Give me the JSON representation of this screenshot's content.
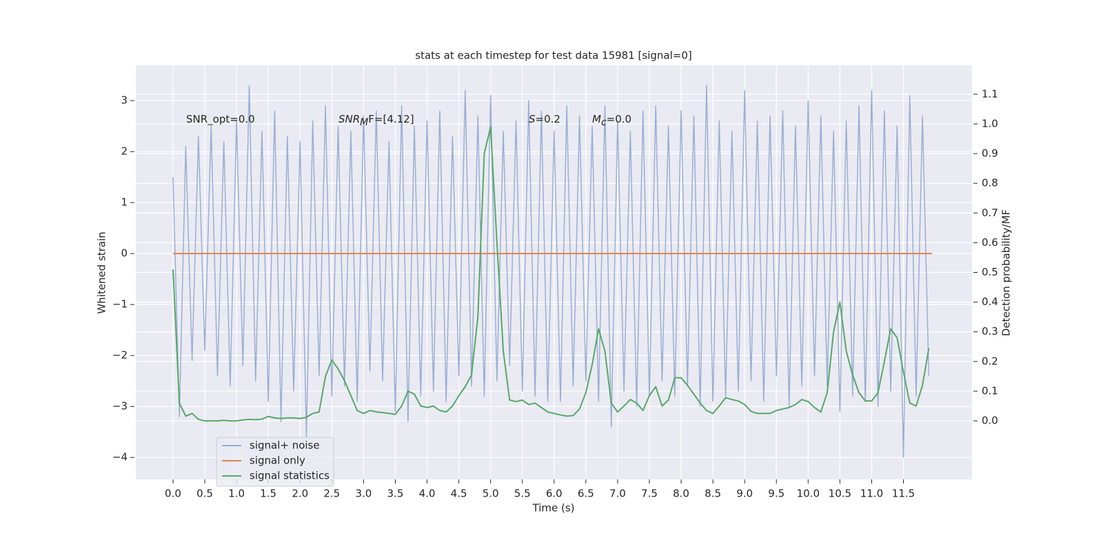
{
  "chart_data": {
    "type": "line",
    "title": "stats at each timestep for test data 15981 [signal=0]",
    "xlabel": "Time (s)",
    "ylabel": "Whitened strain",
    "y2label": "Detection probability/MF",
    "annotations": [
      {
        "text": "SNR_opt=0.0"
      },
      {
        "text": "SNR",
        "sub": "M",
        "tail": "F=[4.12]"
      },
      {
        "text": "S",
        "tail": "=0.2"
      },
      {
        "text": "M",
        "sub": "c",
        "tail": "=0.0"
      }
    ],
    "grid": true,
    "legend": "lower left",
    "xlim": [
      -0.586,
      12.58
    ],
    "ylim": [
      -4.43,
      3.69
    ],
    "y2lim": [
      -0.197,
      1.197
    ],
    "xticks": [
      {
        "value": 0,
        "label": "0.0"
      },
      {
        "value": 0.5,
        "label": "0.5"
      },
      {
        "value": 1,
        "label": "1.0"
      },
      {
        "value": 1.5,
        "label": "1.5"
      },
      {
        "value": 2,
        "label": "2.0"
      },
      {
        "value": 2.5,
        "label": "2.5"
      },
      {
        "value": 3,
        "label": "3.0"
      },
      {
        "value": 3.5,
        "label": "3.5"
      },
      {
        "value": 4,
        "label": "4.0"
      },
      {
        "value": 4.5,
        "label": "4.5"
      },
      {
        "value": 5,
        "label": "5.0"
      },
      {
        "value": 5.5,
        "label": "5.5"
      },
      {
        "value": 6,
        "label": "6.0"
      },
      {
        "value": 6.5,
        "label": "6.5"
      },
      {
        "value": 7,
        "label": "7.0"
      },
      {
        "value": 7.5,
        "label": "7.5"
      },
      {
        "value": 8,
        "label": "8.0"
      },
      {
        "value": 8.5,
        "label": "8.5"
      },
      {
        "value": 9,
        "label": "9.0"
      },
      {
        "value": 9.5,
        "label": "9.5"
      },
      {
        "value": 10,
        "label": "10.0"
      },
      {
        "value": 10.5,
        "label": "10.5"
      },
      {
        "value": 11,
        "label": "11.0"
      },
      {
        "value": 11.5,
        "label": "11.5"
      }
    ],
    "yticks": [
      {
        "value": -4,
        "label": "−4"
      },
      {
        "value": -3,
        "label": "−3"
      },
      {
        "value": -2,
        "label": "−2"
      },
      {
        "value": -1,
        "label": "−1"
      },
      0,
      1,
      2,
      3
    ],
    "y2ticks": [
      {
        "value": 0,
        "label": "0.0"
      },
      {
        "value": 0.1,
        "label": "0.1"
      },
      {
        "value": 0.2,
        "label": "0.2"
      },
      {
        "value": 0.3,
        "label": "0.3"
      },
      {
        "value": 0.4,
        "label": "0.4"
      },
      {
        "value": 0.5,
        "label": "0.5"
      },
      {
        "value": 0.6,
        "label": "0.6"
      },
      {
        "value": 0.7,
        "label": "0.7"
      },
      {
        "value": 0.8,
        "label": "0.8"
      },
      {
        "value": 0.9,
        "label": "0.9"
      },
      {
        "value": 1,
        "label": "1.0"
      },
      {
        "value": 1.1,
        "label": "1.1"
      }
    ],
    "x": [
      0.0,
      0.1,
      0.2,
      0.3,
      0.4,
      0.5,
      0.6,
      0.7,
      0.8,
      0.9,
      1.0,
      1.1,
      1.2,
      1.3,
      1.4,
      1.5,
      1.6,
      1.7,
      1.8,
      1.9,
      2.0,
      2.1,
      2.2,
      2.3,
      2.4,
      2.5,
      2.6,
      2.7,
      2.8,
      2.9,
      3.0,
      3.1,
      3.2,
      3.3,
      3.4,
      3.5,
      3.6,
      3.7,
      3.8,
      3.9,
      4.0,
      4.1,
      4.2,
      4.3,
      4.4,
      4.5,
      4.6,
      4.7,
      4.8,
      4.9,
      5.0,
      5.1,
      5.2,
      5.3,
      5.4,
      5.5,
      5.6,
      5.7,
      5.8,
      5.9,
      6.0,
      6.1,
      6.2,
      6.3,
      6.4,
      6.5,
      6.6,
      6.7,
      6.8,
      6.9,
      7.0,
      7.1,
      7.2,
      7.3,
      7.4,
      7.5,
      7.6,
      7.7,
      7.8,
      7.9,
      8.0,
      8.1,
      8.2,
      8.3,
      8.4,
      8.5,
      8.6,
      8.7,
      8.8,
      8.9,
      9.0,
      9.1,
      9.2,
      9.3,
      9.4,
      9.5,
      9.6,
      9.7,
      9.8,
      9.9,
      10.0,
      10.1,
      10.2,
      10.3,
      10.4,
      10.5,
      10.6,
      10.7,
      10.8,
      10.9,
      11.0,
      11.1,
      11.2,
      11.3,
      11.4,
      11.5,
      11.6,
      11.7,
      11.8,
      11.9
    ],
    "series": [
      {
        "name": "signal+ noise",
        "color": "#9aaed4",
        "values": [
          1.5,
          -3.2,
          2.1,
          -2.1,
          2.3,
          -1.9,
          2.5,
          -2.4,
          2.2,
          -2.6,
          2.6,
          -2.2,
          3.3,
          -2.5,
          2.4,
          -2.9,
          2.8,
          -3.3,
          2.3,
          -2.7,
          2.2,
          -3.6,
          2.6,
          -2.4,
          2.9,
          -2.8,
          2.5,
          -2.6,
          2.4,
          -2.9,
          2.7,
          -2.3,
          2.8,
          -2.5,
          2.2,
          -3.1,
          2.9,
          -3.3,
          2.5,
          -2.8,
          2.6,
          -2.7,
          2.8,
          -2.9,
          2.3,
          -2.4,
          3.2,
          -2.6,
          2.7,
          -2.8,
          3.1,
          -2.5,
          2.4,
          -2.2,
          2.6,
          -2.7,
          3.0,
          -2.8,
          2.8,
          -2.9,
          2.4,
          -2.9,
          2.9,
          -2.6,
          2.7,
          -2.5,
          2.5,
          -2.9,
          2.9,
          -3.4,
          2.6,
          -2.7,
          2.4,
          -3.0,
          2.8,
          -2.8,
          2.9,
          -2.5,
          2.5,
          -2.8,
          2.8,
          -2.6,
          2.7,
          -3.0,
          3.3,
          -2.9,
          2.6,
          -2.8,
          2.4,
          -2.7,
          3.2,
          -2.5,
          2.6,
          -2.9,
          2.7,
          -2.4,
          2.8,
          -3.0,
          2.5,
          -2.6,
          3.0,
          -2.4,
          2.7,
          -2.6,
          2.4,
          -3.1,
          2.6,
          -2.8,
          2.9,
          -2.9,
          3.2,
          -3.0,
          2.8,
          -2.7,
          2.5,
          -4.0,
          3.1,
          -2.8,
          2.7,
          -2.4
        ]
      },
      {
        "name": "signal only",
        "color": "#dd8452",
        "x": [
          0.0,
          11.95
        ],
        "values": [
          0,
          0
        ]
      },
      {
        "name": "signal statistics",
        "color": "#55a868",
        "axis": "y2",
        "values": [
          0.51,
          0.06,
          0.016,
          0.025,
          0.005,
          0.0,
          0.0,
          0.0,
          0.002,
          0.0,
          0.0,
          0.003,
          0.005,
          0.004,
          0.006,
          0.015,
          0.01,
          0.008,
          0.01,
          0.01,
          0.008,
          0.012,
          0.025,
          0.03,
          0.15,
          0.205,
          0.175,
          0.135,
          0.085,
          0.035,
          0.025,
          0.035,
          0.03,
          0.028,
          0.025,
          0.022,
          0.05,
          0.1,
          0.09,
          0.05,
          0.045,
          0.05,
          0.035,
          0.03,
          0.05,
          0.085,
          0.115,
          0.155,
          0.35,
          0.9,
          0.99,
          0.6,
          0.235,
          0.07,
          0.065,
          0.07,
          0.055,
          0.06,
          0.045,
          0.03,
          0.025,
          0.02,
          0.016,
          0.018,
          0.04,
          0.095,
          0.19,
          0.31,
          0.235,
          0.06,
          0.03,
          0.05,
          0.072,
          0.06,
          0.035,
          0.085,
          0.115,
          0.05,
          0.07,
          0.145,
          0.145,
          0.12,
          0.09,
          0.06,
          0.035,
          0.025,
          0.05,
          0.078,
          0.072,
          0.067,
          0.055,
          0.032,
          0.025,
          0.025,
          0.025,
          0.035,
          0.04,
          0.045,
          0.055,
          0.072,
          0.065,
          0.045,
          0.03,
          0.095,
          0.3,
          0.4,
          0.235,
          0.155,
          0.095,
          0.067,
          0.067,
          0.095,
          0.2,
          0.31,
          0.28,
          0.165,
          0.06,
          0.05,
          0.12,
          0.245
        ]
      }
    ]
  }
}
